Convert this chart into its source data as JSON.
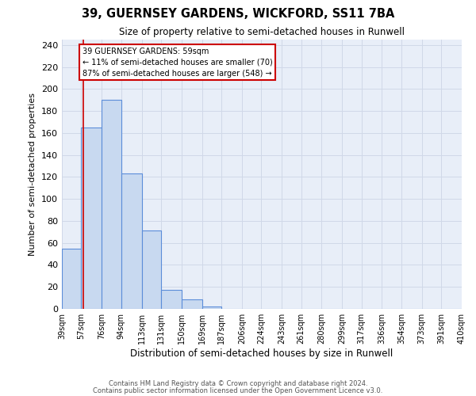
{
  "title": "39, GUERNSEY GARDENS, WICKFORD, SS11 7BA",
  "subtitle": "Size of property relative to semi-detached houses in Runwell",
  "xlabel": "Distribution of semi-detached houses by size in Runwell",
  "ylabel": "Number of semi-detached properties",
  "footer1": "Contains HM Land Registry data © Crown copyright and database right 2024.",
  "footer2": "Contains public sector information licensed under the Open Government Licence v3.0.",
  "bin_labels": [
    "39sqm",
    "57sqm",
    "76sqm",
    "94sqm",
    "113sqm",
    "131sqm",
    "150sqm",
    "169sqm",
    "187sqm",
    "206sqm",
    "224sqm",
    "243sqm",
    "261sqm",
    "280sqm",
    "299sqm",
    "317sqm",
    "336sqm",
    "354sqm",
    "373sqm",
    "391sqm",
    "410sqm"
  ],
  "bar_values": [
    55,
    165,
    190,
    123,
    71,
    17,
    9,
    2,
    0,
    0,
    0,
    0,
    0,
    0,
    0,
    0,
    0,
    0,
    0,
    0
  ],
  "bar_color": "#c8d9f0",
  "bar_edge_color": "#5b8dd9",
  "grid_color": "#d0d8e8",
  "bg_color": "#e8eef8",
  "vline_color": "#cc0000",
  "annotation_box_color": "#cc0000",
  "annotation_fill": "#ffffff",
  "ylim": [
    0,
    245
  ],
  "yticks": [
    0,
    20,
    40,
    60,
    80,
    100,
    120,
    140,
    160,
    180,
    200,
    220,
    240
  ],
  "bin_edges_sqm": [
    39,
    57,
    76,
    94,
    113,
    131,
    150,
    169,
    187,
    206,
    224,
    243,
    261,
    280,
    299,
    317,
    336,
    354,
    373,
    391,
    410
  ],
  "property_sqm": 59,
  "annotation_text": "39 GUERNSEY GARDENS: 59sqm\n← 11% of semi-detached houses are smaller (70)\n87% of semi-detached houses are larger (548) →"
}
